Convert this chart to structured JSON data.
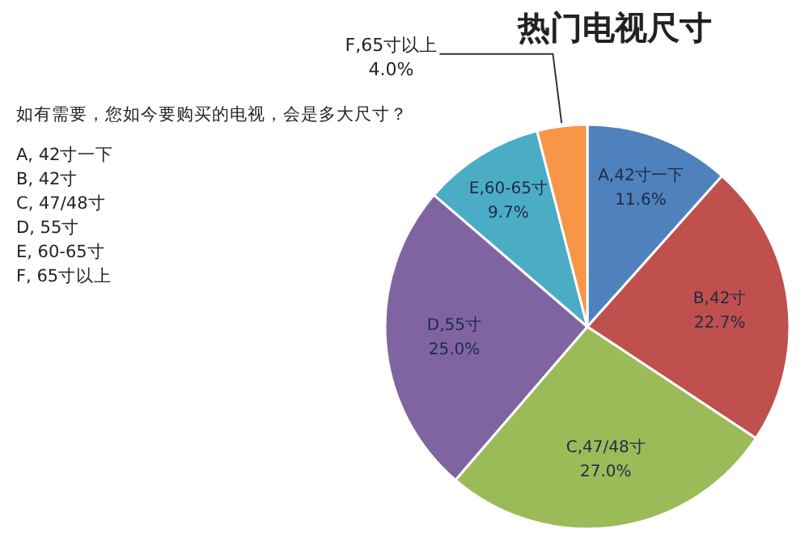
{
  "chart_data": {
    "type": "pie",
    "title": "热门电视尺寸",
    "categories": [
      "A,42寸一下",
      "B,42寸",
      "C,47/48寸",
      "D,55寸",
      "E,60-65寸",
      "F,65寸以上"
    ],
    "values": [
      11.6,
      22.7,
      27.0,
      25.0,
      9.7,
      4.0
    ],
    "value_labels": [
      "11.6%",
      "22.7%",
      "27.0%",
      "25.0%",
      "9.7%",
      "4.0%"
    ],
    "colors": [
      "#4f81bd",
      "#c0504d",
      "#9bbb59",
      "#8064a2",
      "#4bacc6",
      "#f79646"
    ],
    "annotations": [
      "如有需要，您如今要购买的电视，会是多大尺寸？",
      "A, 42寸一下",
      "B, 42寸",
      "C, 47/48寸",
      "D, 55寸",
      "E, 60-65寸",
      "F, 65寸以上"
    ]
  }
}
